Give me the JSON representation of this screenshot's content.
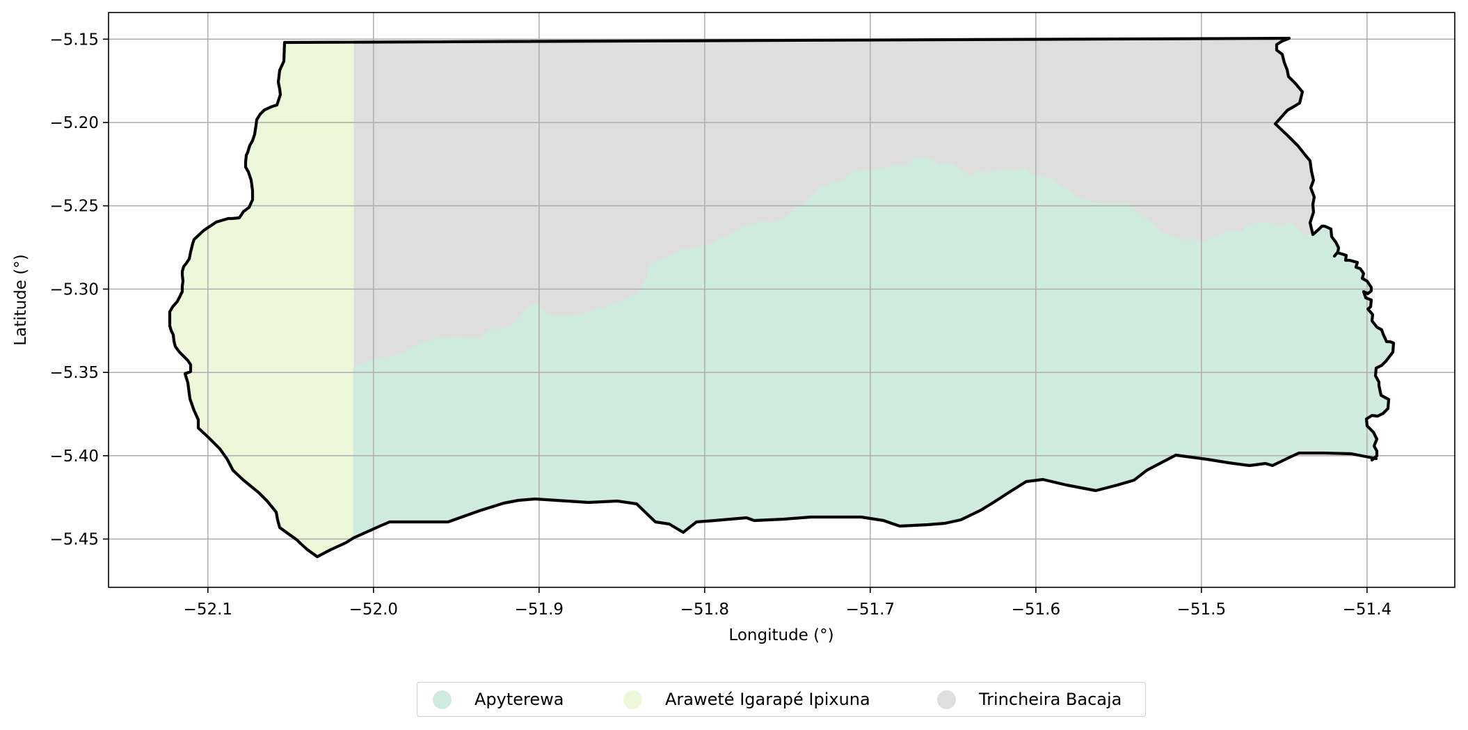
{
  "chart_data": {
    "type": "map",
    "xlabel": "Longitude (°)",
    "ylabel": "Latitude (°)",
    "xlim": [
      -52.16,
      -51.347
    ],
    "ylim": [
      -5.479,
      -5.134
    ],
    "x_ticks": [
      -52.1,
      -52.0,
      -51.9,
      -51.8,
      -51.7,
      -51.6,
      -51.5,
      -51.4
    ],
    "x_tick_labels": [
      "−52.1",
      "−52.0",
      "−51.9",
      "−51.8",
      "−51.7",
      "−51.6",
      "−51.5",
      "−51.4"
    ],
    "y_ticks": [
      -5.15,
      -5.2,
      -5.25,
      -5.3,
      -5.35,
      -5.4,
      -5.45
    ],
    "y_tick_labels": [
      "−5.15",
      "−5.20",
      "−5.25",
      "−5.30",
      "−5.35",
      "−5.40",
      "−5.45"
    ],
    "grid": true,
    "legend_position": "bottom-center",
    "regions": [
      {
        "name": "Apyterewa",
        "color": "#cfebde"
      },
      {
        "name": "Araweté Igarapé Ipixuna",
        "color": "#edf8db"
      },
      {
        "name": "Trincheira Bacaja",
        "color": "#dedede"
      }
    ],
    "boundary_color": "#000000"
  }
}
